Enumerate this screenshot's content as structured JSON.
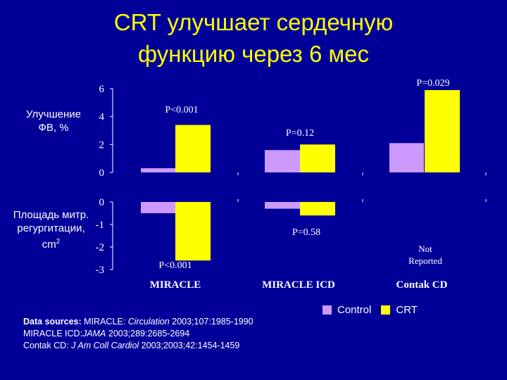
{
  "slide": {
    "title_line1": "CRT улучшает сердечную",
    "title_line2": "функцию через 6 мес",
    "ylabel_top_line1": "Улучшение",
    "ylabel_top_line2": "ФВ, %",
    "ylabel_bottom_line1": "Площадь митр.",
    "ylabel_bottom_line2": "регургитации,",
    "ylabel_bottom_line3_base": "cm",
    "ylabel_bottom_line3_sup": "2",
    "legend": {
      "control_label": "Control",
      "crt_label": "CRT"
    },
    "sources": {
      "heading": "Data sources:",
      "line1_name": "MIRACLE:",
      "line1_journal": "Circulation",
      "line1_ref": "2003;107:1985-1990",
      "line2_name": "MIRACLE ICD:",
      "line2_journal": "JAMA",
      "line2_ref": "2003;289:2685-2694",
      "line3_name": "Contak CD:",
      "line3_journal": "J Am Coll Cardiol",
      "line3_ref": "2003;2003;42:1454-1459"
    }
  },
  "colors": {
    "background": "#000099",
    "title": "#ffff00",
    "control": "#cc99ff",
    "crt": "#ffff00",
    "text": "#ffffff"
  },
  "chart_data": [
    {
      "type": "bar",
      "categories": [
        "MIRACLE",
        "MIRACLE ICD",
        "Contak CD"
      ],
      "series": [
        {
          "name": "Control",
          "values": [
            0.3,
            1.6,
            2.1
          ]
        },
        {
          "name": "CRT",
          "values": [
            3.4,
            2.0,
            5.9
          ]
        }
      ],
      "yticks": [
        "0",
        "2",
        "4",
        "6"
      ],
      "ylim": [
        0,
        6
      ],
      "annotations": [
        "P<0.001",
        "P=0.12",
        "P=0.029"
      ]
    },
    {
      "type": "bar",
      "categories": [
        "MIRACLE",
        "MIRACLE ICD",
        "Contak CD"
      ],
      "series": [
        {
          "name": "Control",
          "values": [
            -0.5,
            -0.3,
            null
          ]
        },
        {
          "name": "CRT",
          "values": [
            -2.6,
            -0.6,
            null
          ]
        }
      ],
      "yticks": [
        "0",
        "-1",
        "-2",
        "-3"
      ],
      "ylim": [
        -3,
        0
      ],
      "annotations": [
        "P<0.001",
        "P=0.58",
        "Not Reported"
      ],
      "category_labels": [
        "MIRACLE",
        "MIRACLE ICD",
        "Contak CD"
      ]
    }
  ]
}
